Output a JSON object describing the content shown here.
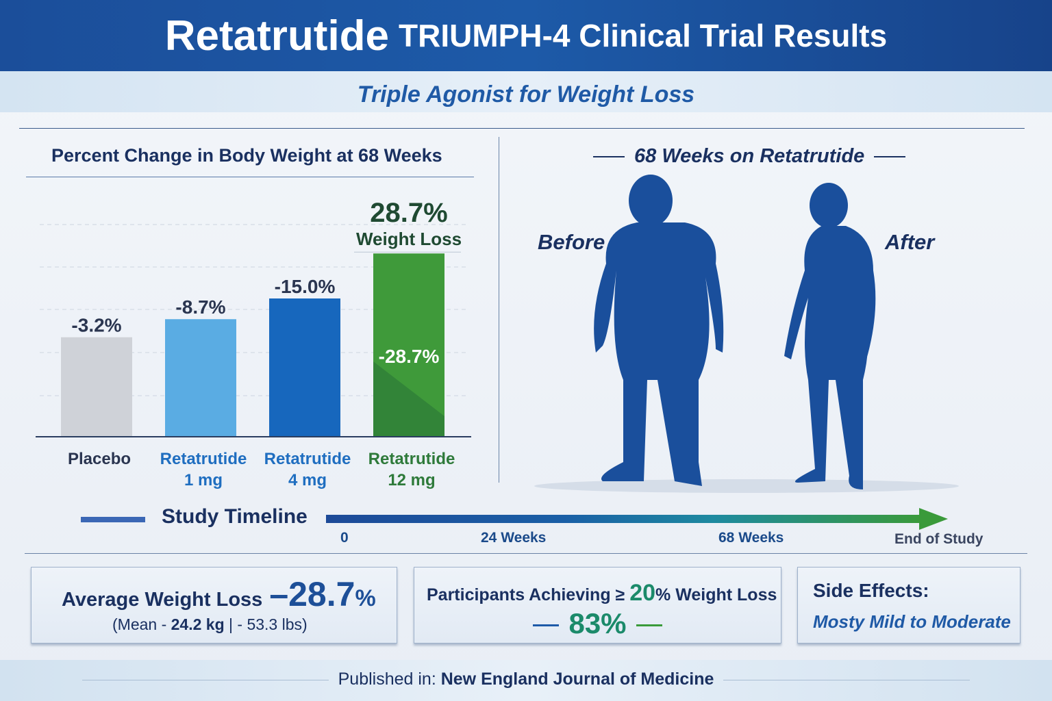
{
  "header": {
    "title_main": "Retatrutide",
    "title_rest": "TRIUMPH-4 Clinical Trial Results",
    "subtitle": "Triple Agonist for Weight Loss"
  },
  "chart_data": {
    "type": "bar",
    "title": "Percent Change in Body Weight at 68 Weeks",
    "categories": [
      [
        "Placebo",
        ""
      ],
      [
        "Retatrutide",
        "1 mg"
      ],
      [
        "Retatrutide",
        "4 mg"
      ],
      [
        "Retatrutide",
        "12 mg"
      ]
    ],
    "values": [
      -3.2,
      -8.7,
      -15.0,
      -28.7
    ],
    "value_labels": [
      "-3.2%",
      "-8.7%",
      "-15.0%",
      "-28.7%"
    ],
    "colors": [
      "#cfd2d8",
      "#5aace3",
      "#1767bd",
      "#3f9a3a"
    ],
    "label_colors": [
      "#2a3550",
      "#1f6ec0",
      "#1f6ec0",
      "#2e7a3a"
    ],
    "callout": {
      "value": "28.7%",
      "label": "Weight Loss"
    },
    "grid": true
  },
  "illustration": {
    "title": "68 Weeks on Retatrutide",
    "before": "Before",
    "after": "After",
    "color": "#1a4f9c"
  },
  "timeline": {
    "label": "Study Timeline",
    "ticks": [
      "0",
      "24 Weeks",
      "68 Weeks",
      "End of Study"
    ]
  },
  "stats": {
    "avg": {
      "label": "Average Weight Loss",
      "value": "28.7",
      "unit": "%",
      "detail_prefix": "(Mean -",
      "kg": "24.2 kg",
      "sep": "|",
      "lbs": "- 53.3 lbs)"
    },
    "participants": {
      "label_a": "Participants Achieving ≥",
      "threshold": "20",
      "label_b": "% Weight Loss",
      "value": "83%"
    },
    "side_effects": {
      "label": "Side Effects:",
      "value": "Mosty Mild to Moderate"
    }
  },
  "footer": {
    "prefix": "Published in:",
    "journal": "New England Journal of Medicine"
  }
}
